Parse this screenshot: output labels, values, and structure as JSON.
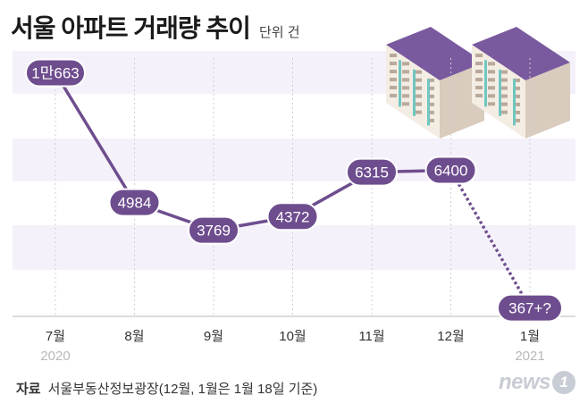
{
  "header": {
    "title": "서울 아파트 거래량 추이",
    "unit": "단위 건"
  },
  "chart_data": {
    "type": "line",
    "title": "서울 아파트 거래량 추이",
    "unit": "건",
    "x_labels": [
      "7월",
      "8월",
      "9월",
      "10월",
      "11월",
      "12월",
      "1월"
    ],
    "year_labels": [
      "2020",
      "",
      "",
      "",
      "",
      "",
      "2021"
    ],
    "values": [
      10663,
      4984,
      3769,
      4372,
      6315,
      6400,
      367
    ],
    "value_labels": [
      "1만663",
      "4984",
      "3769",
      "4372",
      "6315",
      "6400",
      "367+?"
    ],
    "provisional_last_point": true,
    "ylim": [
      0,
      11700
    ],
    "grid": "horizontal bands"
  },
  "colors": {
    "line": "#6e4d8e",
    "label_fill": "#6e4d8e",
    "label_text": "#ffffff",
    "band": "#f5f1fa",
    "axis": "#d4d4d4"
  },
  "footer": {
    "source_label": "자료",
    "source_text": "서울부동산정보광장(12월, 1월은 1월 18일 기준)"
  },
  "logo": {
    "text": "news",
    "badge": "1"
  }
}
